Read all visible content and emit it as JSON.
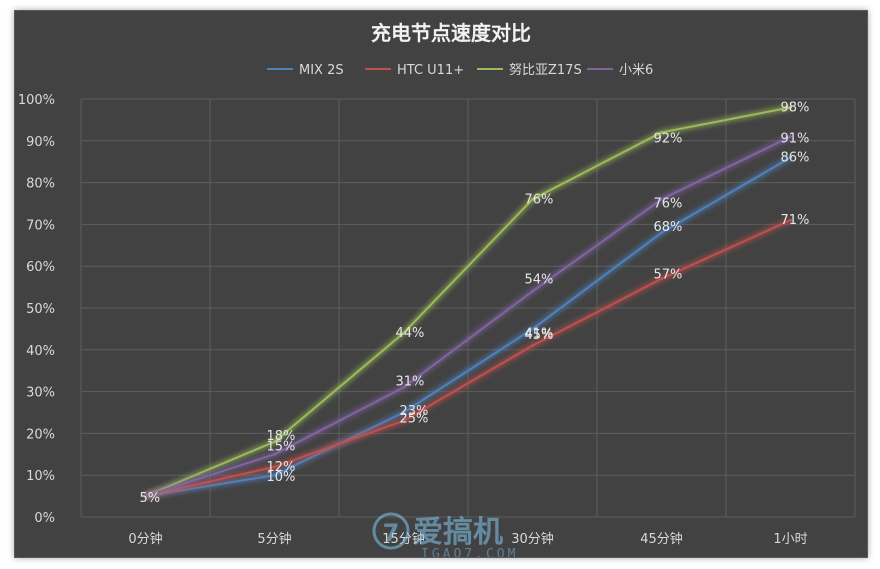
{
  "chart_data": {
    "type": "line",
    "title": "充电节点速度对比",
    "categories": [
      "0分钟",
      "5分钟",
      "15分钟",
      "30分钟",
      "45分钟",
      "1小时"
    ],
    "ylim": [
      0,
      100
    ],
    "yticks": [
      "0%",
      "10%",
      "20%",
      "30%",
      "40%",
      "50%",
      "60%",
      "70%",
      "80%",
      "90%",
      "100%"
    ],
    "grid": true,
    "legend_position": "top",
    "series": [
      {
        "name": "MIX 2S",
        "color": "#4f81bd",
        "values": [
          5,
          10,
          25,
          45,
          68,
          86
        ],
        "labels": [
          "5%",
          "10%",
          "25%",
          "45%",
          "68%",
          "86%"
        ]
      },
      {
        "name": "HTC U11+",
        "color": "#c0504d",
        "values": [
          5,
          12,
          23,
          41,
          57,
          71
        ],
        "labels": [
          "",
          "12%",
          "23%",
          "41%",
          "57%",
          "71%"
        ]
      },
      {
        "name": "努比亚Z17S",
        "color": "#9bbb59",
        "values": [
          5,
          18,
          44,
          76,
          92,
          98
        ],
        "labels": [
          "",
          "18%",
          "44%",
          "76%",
          "92%",
          "98%"
        ]
      },
      {
        "name": "小米6",
        "color": "#8064a2",
        "values": [
          5,
          15,
          31,
          54,
          76,
          91
        ],
        "labels": [
          "",
          "15%",
          "31%",
          "54%",
          "76%",
          "91%"
        ]
      }
    ]
  },
  "watermark": {
    "brand": "爱搞机",
    "site": "IGAO7.COM",
    "logo_glyph": "7"
  }
}
